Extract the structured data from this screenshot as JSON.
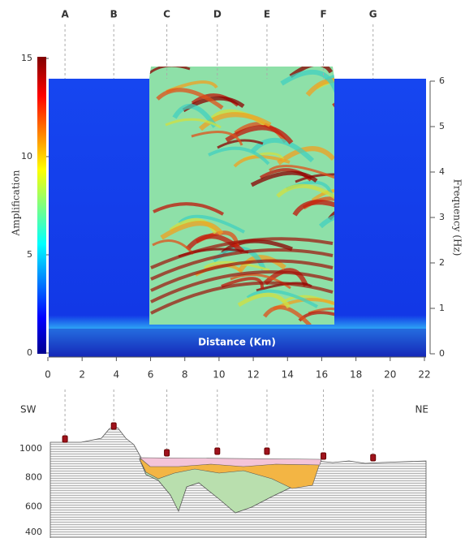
{
  "chart_data": [
    {
      "type": "surface",
      "stations": [
        {
          "label": "A",
          "x": 1.0
        },
        {
          "label": "B",
          "x": 3.85
        },
        {
          "label": "C",
          "x": 6.95
        },
        {
          "label": "D",
          "x": 9.9
        },
        {
          "label": "E",
          "x": 12.8
        },
        {
          "label": "F",
          "x": 16.1
        },
        {
          "label": "G",
          "x": 19.0
        }
      ],
      "xlabel": "Distance (Km)",
      "xlim": [
        0,
        22
      ],
      "xticks": [
        0,
        2,
        4,
        6,
        8,
        10,
        12,
        14,
        16,
        18,
        20,
        22
      ],
      "ylabel": "Amplification",
      "ylim": [
        0,
        15
      ],
      "yticks": [
        0,
        5,
        10,
        15
      ],
      "y2label": "Frequency (Hz)",
      "y2lim": [
        0,
        6
      ],
      "y2ticks": [
        0,
        1,
        2,
        3,
        4,
        5,
        6
      ]
    },
    {
      "type": "cross-section",
      "left_label": "SW",
      "right_label": "NE",
      "ylim": [
        400,
        1000
      ],
      "yticks": [
        400,
        600,
        800,
        1000
      ]
    }
  ]
}
